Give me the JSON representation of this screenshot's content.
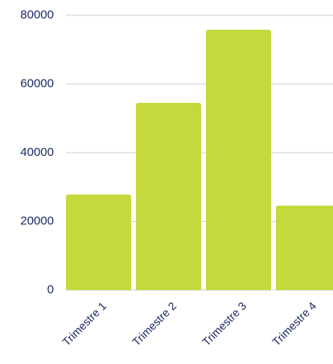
{
  "chart_data": {
    "type": "bar",
    "categories": [
      "Trimestre 1",
      "Trimestre 2",
      "Trimestre 3",
      "Trimestre 4"
    ],
    "values": [
      27800,
      54500,
      75800,
      24600
    ],
    "color": "#c5d93d",
    "ylim": [
      0,
      80000
    ],
    "yticks": [
      0,
      20000,
      40000,
      60000,
      80000
    ],
    "grid": true
  }
}
